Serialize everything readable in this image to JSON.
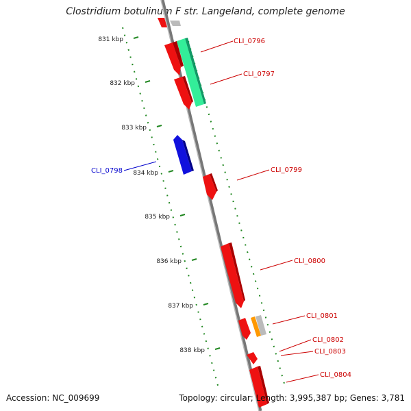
{
  "title": "Clostridium botulinum F str. Langeland, complete genome",
  "accession": "Accession: NC_009699",
  "summary": "Topology: circular; Length: 3,995,387 bp; Genes: 3,781",
  "colors": {
    "forward_gene": "#ee1111",
    "reverse_gene": "#1111dd",
    "rna_gene": "#33ee99",
    "other_orange": "#ff9900",
    "other_gray": "#bbbbbb",
    "backbone": "#888888",
    "tick": "#228822",
    "label_red": "#cc0000",
    "label_blue": "#0000cc"
  },
  "kbp_ticks": [
    {
      "label": "831 kbp"
    },
    {
      "label": "832 kbp"
    },
    {
      "label": "833 kbp"
    },
    {
      "label": "834 kbp"
    },
    {
      "label": "835 kbp"
    },
    {
      "label": "836 kbp"
    },
    {
      "label": "837 kbp"
    },
    {
      "label": "838 kbp"
    }
  ],
  "gene_labels": [
    {
      "text": "CLI_0796",
      "strand": "forward"
    },
    {
      "text": "CLI_0797",
      "strand": "forward"
    },
    {
      "text": "CLI_0798",
      "strand": "reverse"
    },
    {
      "text": "CLI_0799",
      "strand": "forward"
    },
    {
      "text": "CLI_0800",
      "strand": "forward"
    },
    {
      "text": "CLI_0801",
      "strand": "forward"
    },
    {
      "text": "CLI_0802",
      "strand": "forward"
    },
    {
      "text": "CLI_0803",
      "strand": "forward"
    },
    {
      "text": "CLI_0804",
      "strand": "forward"
    }
  ]
}
